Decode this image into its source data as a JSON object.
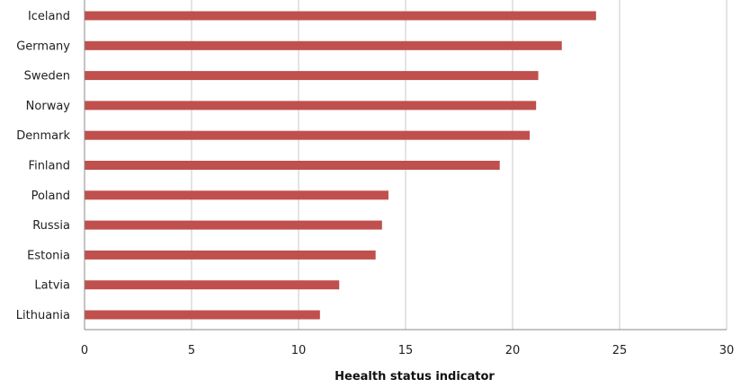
{
  "chart_data": {
    "type": "bar",
    "orientation": "horizontal",
    "categories": [
      "Iceland",
      "Germany",
      "Sweden",
      "Norway",
      "Denmark",
      "Finland",
      "Poland",
      "Russia",
      "Estonia",
      "Latvia",
      "Lithuania"
    ],
    "values": [
      23.9,
      22.3,
      21.2,
      21.1,
      20.8,
      19.4,
      14.2,
      13.9,
      13.6,
      11.9,
      11.0
    ],
    "xlabel": "Heealth status indicator",
    "ylabel": "",
    "xlim": [
      0,
      30
    ],
    "xticks": [
      "0",
      "5",
      "10",
      "15",
      "20",
      "25",
      "30"
    ],
    "grid": "vertical",
    "bar_color": "#c0504d"
  }
}
